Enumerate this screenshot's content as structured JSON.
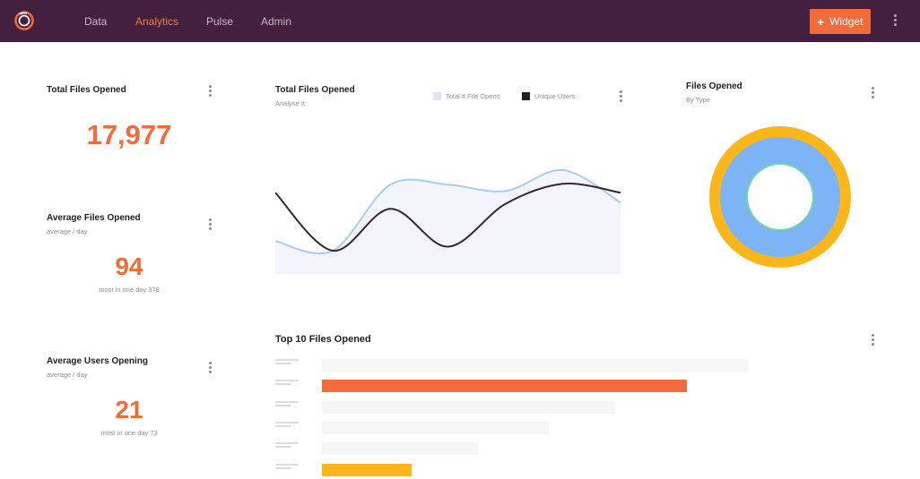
{
  "nav": {
    "items": [
      {
        "label": "Data",
        "active": false
      },
      {
        "label": "Analytics",
        "active": true
      },
      {
        "label": "Pulse",
        "active": false
      },
      {
        "label": "Admin",
        "active": false
      }
    ],
    "widget_button": {
      "icon": "+",
      "label": "Widget"
    }
  },
  "colors": {
    "topbar": "#43203f",
    "accent": "#f26b3a",
    "area_fill": "#f4f5fc",
    "line_total": "#a9cdee",
    "line_unique": "#34263c",
    "donut_outer": "#fbb61b",
    "donut_inner": "#7cb4f5",
    "donut_core_ring": "#6fd4a8",
    "bar_highlight_1": "#f26b3a",
    "bar_highlight_2": "#fbb61b"
  },
  "cards": {
    "total_files": {
      "title": "Total Files Opened",
      "value": "17,977"
    },
    "avg_files": {
      "title": "Average Files Opened",
      "subtitle": "average / day",
      "value": "94",
      "note": "most in one day 378"
    },
    "avg_users": {
      "title": "Average Users Opening",
      "subtitle": "average / day",
      "value": "21",
      "note": "most in one day 73"
    },
    "line_chart": {
      "title": "Total Files Opened",
      "subtitle": "Analyse It",
      "legend": [
        {
          "label": "Total # File Opens",
          "color": "#dfe5fb"
        },
        {
          "label": "Unique Users",
          "color": "#1f1f1f"
        }
      ]
    },
    "donut": {
      "title": "Files Opened",
      "subtitle": "By Type"
    },
    "top10": {
      "title": "Top 10 Files Opened"
    }
  },
  "chart_data": [
    {
      "type": "line",
      "title": "Total Files Opened",
      "subtitle": "Analyse It",
      "series": [
        {
          "name": "Total # File Opens",
          "values": [
            0.12,
            0.0,
            0.82,
            0.82,
            0.74,
            1.0,
            0.6
          ]
        },
        {
          "name": "Unique Users",
          "values": [
            0.72,
            0.0,
            0.52,
            0.05,
            0.58,
            0.83,
            0.72
          ]
        }
      ],
      "value_scale": "relative (unlabeled axes)",
      "grid": false,
      "legend_position": "top"
    },
    {
      "type": "pie",
      "title": "Files Opened",
      "subtitle": "By Type",
      "rings": [
        "outer",
        "inner"
      ],
      "slices": [
        {
          "value": 1.0
        }
      ]
    },
    {
      "type": "bar",
      "orientation": "horizontal",
      "title": "Top 10 Files Opened",
      "values": [
        0.9,
        0.77,
        0.62,
        0.48,
        0.33,
        0.19
      ],
      "highlighted": [
        1,
        5
      ],
      "value_scale": "relative (unlabeled axes)"
    }
  ]
}
